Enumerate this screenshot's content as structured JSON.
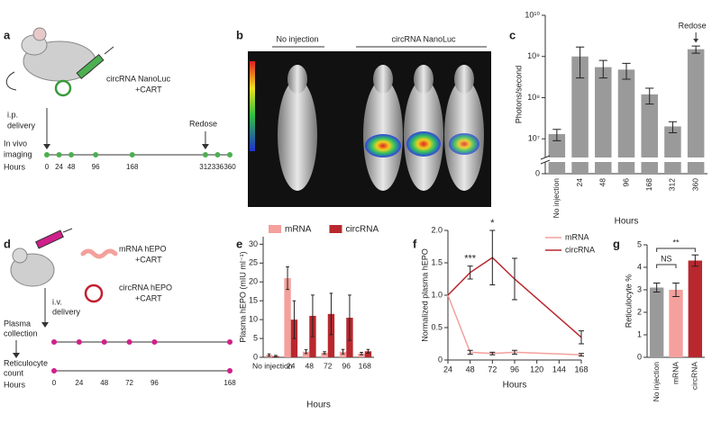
{
  "panels": {
    "a": {
      "label": "a",
      "agent": [
        "circRNA NanoLuc",
        "+CART"
      ],
      "delivery": [
        "i.p.",
        "delivery"
      ],
      "redose": "Redose",
      "row": [
        "In vivo",
        "imaging"
      ],
      "axis_label": "Hours",
      "ticks": [
        0,
        24,
        48,
        96,
        168,
        312,
        336,
        360
      ]
    },
    "b": {
      "label": "b",
      "groups": [
        "No injection",
        "circRNA NanoLuc"
      ]
    },
    "d": {
      "label": "d",
      "agents": [
        [
          "mRNA hEPO",
          "+CART"
        ],
        [
          "circRNA hEPO",
          "+CART"
        ]
      ],
      "delivery": [
        "i.v.",
        "delivery"
      ],
      "rows": [
        [
          "Plasma",
          "collection"
        ],
        [
          "Reticulocyte",
          "count"
        ]
      ],
      "axis_label": "Hours",
      "ticks": [
        0,
        24,
        48,
        72,
        96,
        168
      ]
    }
  },
  "chart_data": [
    {
      "label": "c",
      "type": "bar",
      "categories": [
        "No injection",
        "24",
        "48",
        "96",
        "168",
        "312",
        "360"
      ],
      "values": [
        13000000,
        1000000000,
        550000000,
        480000000,
        120000000,
        20000000,
        1500000000
      ],
      "errors": [
        4000000,
        700000000,
        250000000,
        200000000,
        50000000,
        6000000,
        300000000
      ],
      "color": "#9a9a9a",
      "log": true,
      "ylim": [
        5000000,
        10000000000
      ],
      "yticks": [
        {
          "value": 10000000,
          "label": "10⁷"
        },
        {
          "value": 100000000,
          "label": "10⁸"
        },
        {
          "value": 1000000000,
          "label": "10⁹"
        },
        {
          "value": 10000000000,
          "label": "10¹⁰"
        }
      ],
      "zero_tick": 0,
      "ylabel": "Photons/second",
      "xlabel": "Hours",
      "annotation": "Redose"
    },
    {
      "label": "e",
      "type": "bar",
      "categories": [
        "No injection",
        "24",
        "48",
        "72",
        "96",
        "168"
      ],
      "series": [
        {
          "name": "mRNA",
          "color": "#f4a09c",
          "values": [
            0.6,
            21,
            1.5,
            1.2,
            1.5,
            1
          ],
          "errors": [
            0.3,
            3,
            0.5,
            0.3,
            0.6,
            0.3
          ]
        },
        {
          "name": "circRNA",
          "color": "#b8282e",
          "values": [
            0.3,
            10,
            11,
            11.5,
            10.5,
            1.6
          ],
          "errors": [
            0.2,
            5,
            5.5,
            5.5,
            6,
            0.5
          ]
        }
      ],
      "ylim": [
        0,
        32
      ],
      "yticks": [
        0,
        5,
        10,
        15,
        20,
        25,
        30
      ],
      "ylabel": "Plasma hEPO (mIU ml⁻¹)",
      "xlabel": "Hours",
      "legend": "top"
    },
    {
      "label": "f",
      "type": "line",
      "x": [
        24,
        48,
        72,
        96,
        168
      ],
      "series": [
        {
          "name": "mRNA",
          "color": "#f4a09c",
          "values": [
            1,
            0.12,
            0.1,
            0.12,
            0.08
          ],
          "errors": [
            null,
            0.03,
            0.02,
            0.03,
            0.02
          ]
        },
        {
          "name": "circRNA",
          "color": "#b8282e",
          "values": [
            1,
            1.35,
            1.58,
            1.25,
            0.35
          ],
          "errors": [
            null,
            0.1,
            0.42,
            0.32,
            0.1
          ]
        }
      ],
      "xlim": [
        24,
        168
      ],
      "xticks": [
        24,
        48,
        72,
        96,
        120,
        144,
        168
      ],
      "ylim": [
        0,
        2
      ],
      "yticks": [
        0,
        0.5,
        {
          "value": 1,
          "label": "1.0"
        },
        1.5,
        {
          "value": 2,
          "label": "2.0"
        }
      ],
      "ylabel": "Normalized plasma hEPO",
      "xlabel": "Hours",
      "annotations": [
        {
          "text": "***",
          "x": 48
        },
        {
          "text": "*",
          "x": 72
        }
      ],
      "legend": "upper right"
    },
    {
      "label": "g",
      "type": "bar",
      "categories": [
        "No injection",
        "mRNA",
        "circRNA"
      ],
      "values": [
        3.1,
        3.0,
        4.3
      ],
      "errors": [
        0.2,
        0.3,
        0.25
      ],
      "colors": [
        "#9a9a9a",
        "#f4a09c",
        "#b8282e"
      ],
      "ylim": [
        0,
        5
      ],
      "yticks": [
        0,
        1,
        2,
        3,
        4,
        5
      ],
      "ylabel": "Reticulocyte %",
      "annotations": [
        "NS",
        "**"
      ]
    }
  ]
}
